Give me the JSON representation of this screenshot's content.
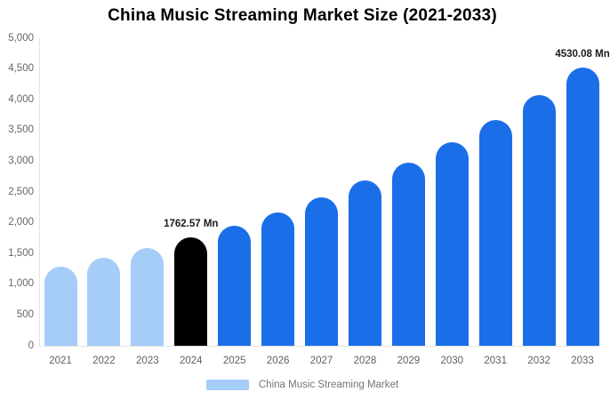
{
  "chart_data": {
    "type": "bar",
    "title": "China Music Streaming Market Size (2021-2033)",
    "xlabel": "",
    "ylabel": "",
    "unit": "Mn",
    "categories": [
      "2021",
      "2022",
      "2023",
      "2024",
      "2025",
      "2026",
      "2027",
      "2028",
      "2029",
      "2030",
      "2031",
      "2032",
      "2033"
    ],
    "series": [
      {
        "name": "China Music Streaming Market",
        "values": [
          1287,
          1429,
          1587,
          1762.57,
          1957,
          2174,
          2414,
          2681,
          2978,
          3307,
          3673,
          4079,
          4530.08
        ]
      }
    ],
    "labeled_values": {
      "2024": "1762.57 Mn",
      "2033": "4530.08 Mn"
    },
    "annotations": [
      {
        "category": "2024",
        "text": "1762.57 Mn"
      },
      {
        "category": "2033",
        "text": "4530.08 Mn"
      }
    ],
    "ylim": [
      0,
      5000
    ],
    "ytick_step": 500,
    "ytick_labels": [
      "0",
      "500",
      "1,000",
      "1,500",
      "2,000",
      "2,500",
      "3,000",
      "3,500",
      "4,000",
      "4,500",
      "5,000"
    ],
    "grid": false,
    "bar_colors": [
      "#a5cdf8",
      "#a5cdf8",
      "#a5cdf8",
      "#000000",
      "#1a6fe8",
      "#1a6fe8",
      "#1a6fe8",
      "#1a6fe8",
      "#1a6fe8",
      "#1a6fe8",
      "#1a6fe8",
      "#1a6fe8",
      "#1a6fe8"
    ],
    "legend": {
      "position": "bottom",
      "label": "China Music Streaming Market",
      "swatch_color": "#a5cdf8"
    },
    "colors": {
      "historical_bar": "#a5cdf8",
      "highlight_bar": "#000000",
      "forecast_bar": "#1a6fe8",
      "title_text": "#000000",
      "axis_text": "#666666",
      "legend_text": "#757575",
      "axis_line": "#e3e3e3"
    }
  }
}
